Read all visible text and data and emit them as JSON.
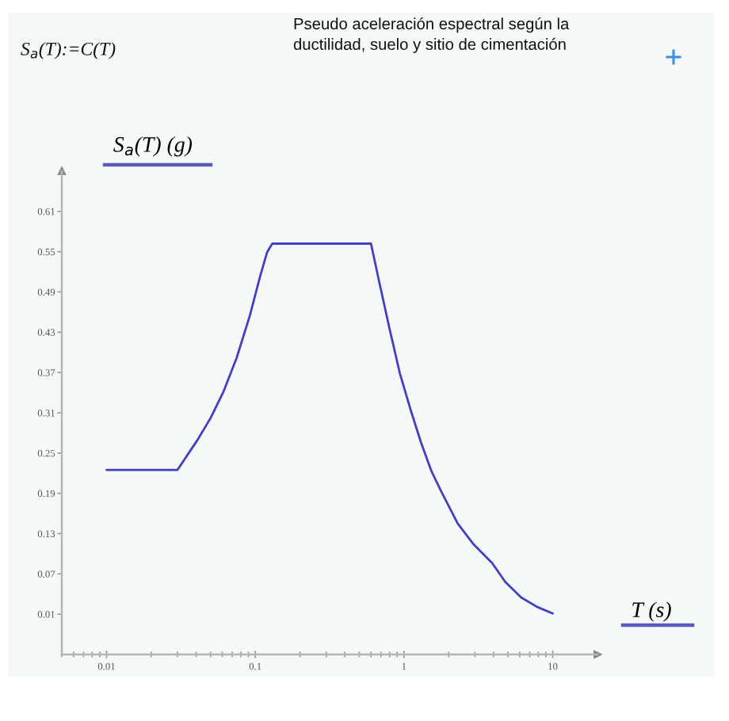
{
  "chart_data": {
    "type": "line",
    "title": "Pseudo aceleración espectral según la\nductilidad, suelo y sitio de cimentación",
    "xlabel": "T (s)",
    "ylabel": "S$_{a}$(T) (g)",
    "annotations": [
      "S$_{a}$(T):=C(T)"
    ],
    "series": [
      {
        "color": "#4040c0",
        "x": [
          0.01,
          0.03,
          0.041,
          0.05,
          0.061,
          0.075,
          0.092,
          0.108,
          0.12,
          0.13,
          0.6,
          0.68,
          0.8,
          0.94,
          1.11,
          1.3,
          1.53,
          1.77,
          2.3,
          2.94,
          3.92,
          4.8,
          6.13,
          7.83,
          10
        ],
        "values": [
          0.225,
          0.225,
          0.27,
          0.302,
          0.341,
          0.392,
          0.455,
          0.514,
          0.549,
          0.562,
          0.562,
          0.506,
          0.435,
          0.368,
          0.314,
          0.266,
          0.223,
          0.194,
          0.145,
          0.114,
          0.086,
          0.058,
          0.035,
          0.021,
          0.011
        ]
      }
    ],
    "log": "x",
    "xlim": [
      0.005,
      20
    ],
    "xticks": [
      0.01,
      0.1,
      1,
      10
    ],
    "ylim": [
      -0.05,
      0.67
    ],
    "yticks": [
      0.01,
      0.07,
      0.13,
      0.19,
      0.25,
      0.31,
      0.37,
      0.43,
      0.49,
      0.55,
      0.61
    ]
  }
}
